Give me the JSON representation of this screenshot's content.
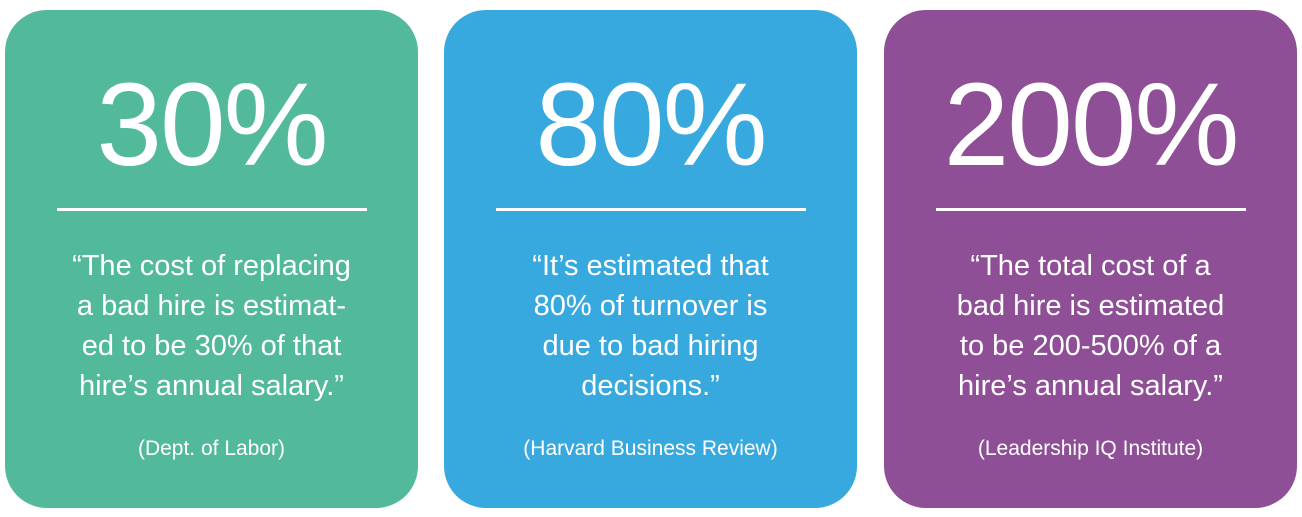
{
  "cards": [
    {
      "stat": "30%",
      "quote_lines": [
        "“The cost of replacing",
        "a bad hire is estimat-",
        "ed to be 30% of that",
        "hire’s annual salary.”"
      ],
      "source": "(Dept. of Labor)",
      "color": "#52b99b"
    },
    {
      "stat": "80%",
      "quote_lines": [
        "“It’s estimated that",
        "80% of turnover is",
        "due to bad hiring",
        "decisions.”"
      ],
      "source": "(Harvard Business Review)",
      "color": "#38a9df"
    },
    {
      "stat": "200%",
      "quote_lines": [
        "“The total cost of a",
        "bad hire is estimated",
        "to be 200-500% of a",
        "hire’s annual salary.”"
      ],
      "source": "(Leadership IQ Institute)",
      "color": "#8f4f97"
    }
  ]
}
